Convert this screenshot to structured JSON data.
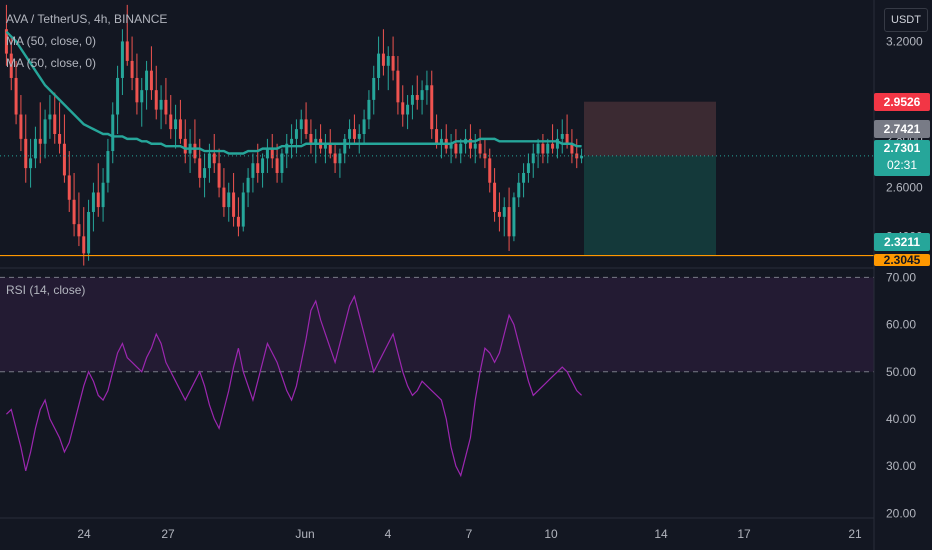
{
  "header": {
    "symbol_title": "AVA / TetherUS, 4h, BINANCE",
    "ma1_label": "MA (50, close, 0)",
    "ma2_label": "MA (50, close, 0)",
    "currency_button": "USDT"
  },
  "rsi_panel": {
    "label": "RSI (14, close)"
  },
  "price_tags": {
    "target": "2.9526",
    "prev": "2.7421",
    "last": "2.7301",
    "countdown": "02:31",
    "level": "2.3211",
    "low": "2.3045"
  },
  "colors": {
    "background": "#131722",
    "up": "#26a69a",
    "down": "#ef5350",
    "ma": "#26a69a",
    "rsi": "#9c27b0",
    "level_line": "#ff9800",
    "target_tag": "#f23645",
    "last_tag": "#26a69a",
    "prev_tag": "#787b86",
    "stop_zone": "#3b2a32",
    "profit_zone": "#14393a"
  },
  "chart_data": [
    {
      "type": "candlestick",
      "title": "AVA / TetherUS, 4h, BINANCE",
      "x_tick_labels": [
        "24",
        "27",
        "Jun",
        "4",
        "7",
        "10",
        "14",
        "17",
        "21"
      ],
      "y_tick_labels": [
        "3.2000",
        "2.8000",
        "2.6000",
        "2.4000"
      ],
      "ylim": [
        2.27,
        3.37
      ],
      "ohlc": [
        [
          3.25,
          3.35,
          3.1,
          3.15
        ],
        [
          3.15,
          3.22,
          3.0,
          3.05
        ],
        [
          3.05,
          3.12,
          2.86,
          2.9
        ],
        [
          2.9,
          2.98,
          2.75,
          2.8
        ],
        [
          2.8,
          2.9,
          2.62,
          2.68
        ],
        [
          2.68,
          2.8,
          2.6,
          2.72
        ],
        [
          2.72,
          2.85,
          2.68,
          2.8
        ],
        [
          2.8,
          2.95,
          2.7,
          2.78
        ],
        [
          2.78,
          2.92,
          2.72,
          2.88
        ],
        [
          2.88,
          2.98,
          2.8,
          2.9
        ],
        [
          2.9,
          2.99,
          2.78,
          2.82
        ],
        [
          2.82,
          2.95,
          2.74,
          2.78
        ],
        [
          2.78,
          2.9,
          2.62,
          2.65
        ],
        [
          2.65,
          2.75,
          2.5,
          2.55
        ],
        [
          2.55,
          2.66,
          2.4,
          2.45
        ],
        [
          2.45,
          2.58,
          2.36,
          2.4
        ],
        [
          2.4,
          2.52,
          2.28,
          2.33
        ],
        [
          2.33,
          2.55,
          2.3,
          2.5
        ],
        [
          2.5,
          2.62,
          2.42,
          2.58
        ],
        [
          2.58,
          2.7,
          2.48,
          2.52
        ],
        [
          2.52,
          2.68,
          2.46,
          2.62
        ],
        [
          2.62,
          2.8,
          2.58,
          2.75
        ],
        [
          2.75,
          2.95,
          2.7,
          2.9
        ],
        [
          2.9,
          3.1,
          2.82,
          3.05
        ],
        [
          3.05,
          3.25,
          2.98,
          3.2
        ],
        [
          3.2,
          3.35,
          3.1,
          3.12
        ],
        [
          3.12,
          3.22,
          3.0,
          3.05
        ],
        [
          3.05,
          3.15,
          2.9,
          2.95
        ],
        [
          2.95,
          3.05,
          2.85,
          3.0
        ],
        [
          3.0,
          3.12,
          2.92,
          3.08
        ],
        [
          3.08,
          3.18,
          2.96,
          3.0
        ],
        [
          3.0,
          3.1,
          2.88,
          2.92
        ],
        [
          2.92,
          3.02,
          2.84,
          2.96
        ],
        [
          2.96,
          3.05,
          2.86,
          2.9
        ],
        [
          2.9,
          2.98,
          2.8,
          2.84
        ],
        [
          2.84,
          2.94,
          2.76,
          2.88
        ],
        [
          2.88,
          2.96,
          2.78,
          2.8
        ],
        [
          2.8,
          2.88,
          2.7,
          2.74
        ],
        [
          2.74,
          2.84,
          2.66,
          2.78
        ],
        [
          2.78,
          2.88,
          2.7,
          2.72
        ],
        [
          2.72,
          2.8,
          2.6,
          2.64
        ],
        [
          2.64,
          2.74,
          2.56,
          2.68
        ],
        [
          2.68,
          2.78,
          2.62,
          2.74
        ],
        [
          2.74,
          2.82,
          2.66,
          2.7
        ],
        [
          2.7,
          2.76,
          2.56,
          2.6
        ],
        [
          2.6,
          2.68,
          2.48,
          2.52
        ],
        [
          2.52,
          2.62,
          2.46,
          2.58
        ],
        [
          2.58,
          2.66,
          2.44,
          2.48
        ],
        [
          2.48,
          2.56,
          2.4,
          2.44
        ],
        [
          2.44,
          2.62,
          2.42,
          2.58
        ],
        [
          2.58,
          2.68,
          2.52,
          2.64
        ],
        [
          2.64,
          2.74,
          2.58,
          2.7
        ],
        [
          2.7,
          2.78,
          2.62,
          2.66
        ],
        [
          2.66,
          2.74,
          2.6,
          2.72
        ],
        [
          2.72,
          2.8,
          2.66,
          2.76
        ],
        [
          2.76,
          2.82,
          2.68,
          2.72
        ],
        [
          2.72,
          2.78,
          2.62,
          2.66
        ],
        [
          2.66,
          2.76,
          2.62,
          2.74
        ],
        [
          2.74,
          2.82,
          2.68,
          2.78
        ],
        [
          2.78,
          2.86,
          2.72,
          2.8
        ],
        [
          2.8,
          2.88,
          2.74,
          2.84
        ],
        [
          2.84,
          2.92,
          2.78,
          2.88
        ],
        [
          2.88,
          2.95,
          2.8,
          2.82
        ],
        [
          2.82,
          2.88,
          2.74,
          2.78
        ],
        [
          2.78,
          2.84,
          2.7,
          2.8
        ],
        [
          2.8,
          2.86,
          2.74,
          2.76
        ],
        [
          2.76,
          2.82,
          2.7,
          2.78
        ],
        [
          2.78,
          2.84,
          2.72,
          2.74
        ],
        [
          2.74,
          2.78,
          2.66,
          2.7
        ],
        [
          2.7,
          2.76,
          2.64,
          2.74
        ],
        [
          2.74,
          2.82,
          2.7,
          2.8
        ],
        [
          2.8,
          2.88,
          2.76,
          2.84
        ],
        [
          2.84,
          2.9,
          2.78,
          2.8
        ],
        [
          2.8,
          2.86,
          2.74,
          2.82
        ],
        [
          2.82,
          2.92,
          2.78,
          2.88
        ],
        [
          2.88,
          3.0,
          2.84,
          2.96
        ],
        [
          2.96,
          3.1,
          2.9,
          3.05
        ],
        [
          3.05,
          3.22,
          3.0,
          3.15
        ],
        [
          3.15,
          3.25,
          3.06,
          3.1
        ],
        [
          3.1,
          3.18,
          3.0,
          3.14
        ],
        [
          3.14,
          3.22,
          3.04,
          3.08
        ],
        [
          3.08,
          3.14,
          2.9,
          2.95
        ],
        [
          2.95,
          3.02,
          2.85,
          2.9
        ],
        [
          2.9,
          2.98,
          2.84,
          2.94
        ],
        [
          2.94,
          3.02,
          2.88,
          2.98
        ],
        [
          2.98,
          3.06,
          2.92,
          2.96
        ],
        [
          2.96,
          3.04,
          2.9,
          3.0
        ],
        [
          3.0,
          3.08,
          2.94,
          3.02
        ],
        [
          3.02,
          3.08,
          2.8,
          2.84
        ],
        [
          2.84,
          2.9,
          2.76,
          2.78
        ],
        [
          2.78,
          2.84,
          2.72,
          2.8
        ],
        [
          2.8,
          2.86,
          2.74,
          2.76
        ],
        [
          2.76,
          2.82,
          2.7,
          2.78
        ],
        [
          2.78,
          2.84,
          2.72,
          2.74
        ],
        [
          2.74,
          2.8,
          2.7,
          2.78
        ],
        [
          2.78,
          2.84,
          2.74,
          2.8
        ],
        [
          2.8,
          2.86,
          2.72,
          2.76
        ],
        [
          2.76,
          2.82,
          2.7,
          2.78
        ],
        [
          2.78,
          2.84,
          2.72,
          2.74
        ],
        [
          2.74,
          2.8,
          2.68,
          2.72
        ],
        [
          2.72,
          2.76,
          2.58,
          2.62
        ],
        [
          2.62,
          2.68,
          2.46,
          2.5
        ],
        [
          2.5,
          2.58,
          2.42,
          2.48
        ],
        [
          2.48,
          2.56,
          2.4,
          2.52
        ],
        [
          2.52,
          2.6,
          2.34,
          2.4
        ],
        [
          2.4,
          2.58,
          2.38,
          2.56
        ],
        [
          2.56,
          2.66,
          2.52,
          2.62
        ],
        [
          2.62,
          2.7,
          2.56,
          2.66
        ],
        [
          2.66,
          2.74,
          2.62,
          2.7
        ],
        [
          2.7,
          2.78,
          2.64,
          2.74
        ],
        [
          2.74,
          2.8,
          2.68,
          2.78
        ],
        [
          2.78,
          2.82,
          2.7,
          2.74
        ],
        [
          2.74,
          2.8,
          2.7,
          2.78
        ],
        [
          2.78,
          2.86,
          2.74,
          2.76
        ],
        [
          2.76,
          2.84,
          2.72,
          2.8
        ],
        [
          2.8,
          2.88,
          2.74,
          2.82
        ],
        [
          2.82,
          2.9,
          2.76,
          2.78
        ],
        [
          2.78,
          2.84,
          2.7,
          2.74
        ],
        [
          2.74,
          2.8,
          2.68,
          2.72
        ],
        [
          2.72,
          2.76,
          2.7,
          2.73
        ]
      ],
      "ma50": [
        3.24,
        3.22,
        3.2,
        3.17,
        3.14,
        3.11,
        3.08,
        3.05,
        3.02,
        3.0,
        2.98,
        2.96,
        2.94,
        2.92,
        2.9,
        2.88,
        2.86,
        2.85,
        2.84,
        2.83,
        2.82,
        2.82,
        2.81,
        2.81,
        2.81,
        2.8,
        2.8,
        2.8,
        2.79,
        2.79,
        2.78,
        2.78,
        2.78,
        2.77,
        2.77,
        2.77,
        2.77,
        2.76,
        2.76,
        2.76,
        2.76,
        2.75,
        2.75,
        2.75,
        2.75,
        2.75,
        2.74,
        2.74,
        2.74,
        2.74,
        2.75,
        2.75,
        2.75,
        2.76,
        2.76,
        2.76,
        2.76,
        2.77,
        2.77,
        2.77,
        2.77,
        2.77,
        2.78,
        2.78,
        2.78,
        2.78,
        2.78,
        2.78,
        2.78,
        2.78,
        2.78,
        2.78,
        2.78,
        2.78,
        2.78,
        2.78,
        2.78,
        2.78,
        2.78,
        2.78,
        2.78,
        2.78,
        2.78,
        2.78,
        2.78,
        2.78,
        2.78,
        2.78,
        2.78,
        2.78,
        2.78,
        2.78,
        2.78,
        2.79,
        2.79,
        2.79,
        2.79,
        2.79,
        2.8,
        2.8,
        2.8,
        2.8,
        2.79,
        2.79,
        2.79,
        2.79,
        2.79,
        2.79,
        2.79,
        2.79,
        2.79,
        2.79,
        2.79,
        2.79,
        2.79,
        2.78,
        2.78,
        2.78,
        2.77,
        2.77
      ],
      "horizontal_levels": [
        2.3211
      ],
      "position_tool": {
        "entry": 2.7301,
        "target": 2.9526,
        "stop": 2.3211
      }
    },
    {
      "type": "line",
      "title": "RSI (14, close)",
      "y_tick_labels": [
        "70.00",
        "60.00",
        "50.00",
        "40.00",
        "30.00",
        "20.00"
      ],
      "ylim": [
        19,
        72
      ],
      "bands": [
        50,
        70
      ],
      "values": [
        41,
        42,
        38,
        34,
        29,
        33,
        38,
        42,
        44,
        40,
        38,
        36,
        33,
        35,
        39,
        43,
        47,
        50,
        48,
        45,
        44,
        46,
        50,
        54,
        56,
        53,
        52,
        51,
        50,
        53,
        55,
        58,
        56,
        52,
        50,
        48,
        46,
        44,
        46,
        48,
        50,
        47,
        43,
        40,
        38,
        42,
        46,
        51,
        55,
        50,
        47,
        44,
        48,
        52,
        56,
        54,
        52,
        49,
        46,
        44,
        47,
        52,
        57,
        63,
        65,
        61,
        58,
        55,
        52,
        56,
        60,
        64,
        66,
        62,
        58,
        54,
        50,
        52,
        54,
        56,
        58,
        54,
        50,
        47,
        45,
        46,
        48,
        47,
        46,
        45,
        44,
        40,
        34,
        30,
        28,
        32,
        36,
        44,
        50,
        55,
        54,
        52,
        54,
        58,
        62,
        60,
        56,
        52,
        48,
        45,
        46,
        47,
        48,
        49,
        50,
        51,
        50,
        48,
        46,
        45
      ],
      "x_tick_labels": [
        "24",
        "27",
        "Jun",
        "4",
        "7",
        "10",
        "14",
        "17",
        "21"
      ]
    }
  ]
}
